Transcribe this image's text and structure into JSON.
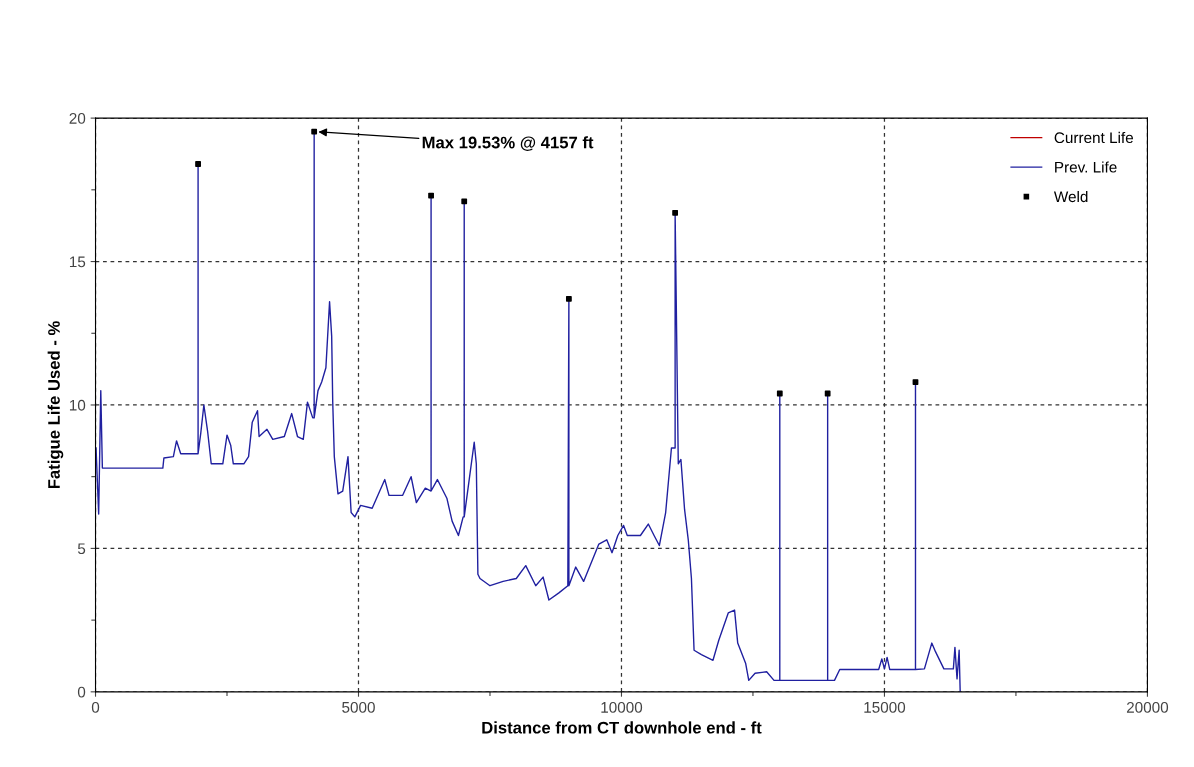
{
  "chart_data": {
    "type": "line",
    "xlabel": "Distance from CT downhole end - ft",
    "ylabel": "Fatigue Life Used - %",
    "xlim": [
      0,
      20000
    ],
    "xticks": [
      0,
      5000,
      10000,
      15000,
      20000
    ],
    "ylim": [
      0,
      20
    ],
    "yticks": [
      0,
      5,
      10,
      15,
      20
    ],
    "grid": true,
    "legend": "top right",
    "annotations": [
      {
        "text": "Max 19.53% @ 4157 ft",
        "x": 4157,
        "y": 19.53
      }
    ],
    "series": [
      {
        "name": "Current Life",
        "color": "#c00000"
      },
      {
        "name": "Prev. Life",
        "color": "#2020a0",
        "x": [
          10,
          60,
          100,
          130,
          290,
          1280,
          1300,
          1480,
          1540,
          1620,
          1950,
          1950,
          1950,
          2000,
          2060,
          2130,
          2200,
          2420,
          2500,
          2570,
          2620,
          2820,
          2910,
          2980,
          3080,
          3110,
          3260,
          3370,
          3590,
          3730,
          3840,
          3950,
          4030,
          4130,
          4157,
          4157,
          4157,
          4230,
          4300,
          4380,
          4450,
          4490,
          4510,
          4540,
          4610,
          4700,
          4800,
          4860,
          4930,
          5040,
          5260,
          5500,
          5580,
          5840,
          6000,
          6100,
          6270,
          6380,
          6380,
          6380,
          6500,
          6680,
          6780,
          6900,
          6990,
          7010,
          7010,
          7010,
          7200,
          7240,
          7270,
          7310,
          7500,
          7750,
          8000,
          8180,
          8370,
          8510,
          8620,
          8810,
          8980,
          9000,
          9000,
          9130,
          9280,
          9570,
          9720,
          9820,
          9930,
          10040,
          10110,
          10360,
          10510,
          10620,
          10720,
          10840,
          10950,
          11020,
          11020,
          11080,
          11130,
          11200,
          11270,
          11330,
          11380,
          11520,
          11740,
          11850,
          12030,
          12150,
          12210,
          12360,
          12420,
          12540,
          12760,
          12900,
          13010,
          13010,
          13010,
          13920,
          13920,
          13920,
          14050,
          14150,
          14890,
          14950,
          15000,
          15050,
          15100,
          15590,
          15590,
          15590,
          15760,
          15900,
          15970,
          16130,
          16310,
          16340,
          16380,
          16420,
          16440
        ],
        "values": [
          8.5,
          6.2,
          10.5,
          7.8,
          7.8,
          7.8,
          8.15,
          8.2,
          8.75,
          8.3,
          8.3,
          18.4,
          8.3,
          9.0,
          10.0,
          9.1,
          7.95,
          7.95,
          8.95,
          8.6,
          7.95,
          7.95,
          8.2,
          9.4,
          9.8,
          8.9,
          9.15,
          8.8,
          8.9,
          9.7,
          8.9,
          8.8,
          10.1,
          9.55,
          9.55,
          19.53,
          9.55,
          10.5,
          10.8,
          11.3,
          13.6,
          12.4,
          10.1,
          8.2,
          6.9,
          7.0,
          8.2,
          6.25,
          6.1,
          6.5,
          6.4,
          7.4,
          6.85,
          6.85,
          7.5,
          6.6,
          7.1,
          7.0,
          17.3,
          7.0,
          7.4,
          6.75,
          5.95,
          5.45,
          6.1,
          6.1,
          17.1,
          6.1,
          8.7,
          7.95,
          4.1,
          3.95,
          3.7,
          3.85,
          3.95,
          4.4,
          3.7,
          4.0,
          3.2,
          3.45,
          3.7,
          13.7,
          3.7,
          4.35,
          3.85,
          5.15,
          5.3,
          4.85,
          5.45,
          5.8,
          5.45,
          5.45,
          5.85,
          5.45,
          5.1,
          6.25,
          8.5,
          8.5,
          16.7,
          7.95,
          8.1,
          6.35,
          5.3,
          3.95,
          1.45,
          1.3,
          1.1,
          1.8,
          2.75,
          2.85,
          1.7,
          1.0,
          0.4,
          0.65,
          0.7,
          0.4,
          0.4,
          10.4,
          0.4,
          0.4,
          10.4,
          0.4,
          0.4,
          0.78,
          0.78,
          1.15,
          0.8,
          1.2,
          0.78,
          0.78,
          10.8,
          0.78,
          0.8,
          1.7,
          1.4,
          0.8,
          0.8,
          1.55,
          0.45,
          1.45,
          0
        ]
      },
      {
        "name": "Weld",
        "color": "#000000",
        "type": "scatter",
        "marker": "square",
        "x": [
          1950,
          4157,
          6380,
          7010,
          9000,
          11020,
          13010,
          13920,
          15590
        ],
        "values": [
          18.4,
          19.53,
          17.3,
          17.1,
          13.7,
          16.7,
          10.4,
          10.4,
          10.8
        ]
      }
    ]
  }
}
